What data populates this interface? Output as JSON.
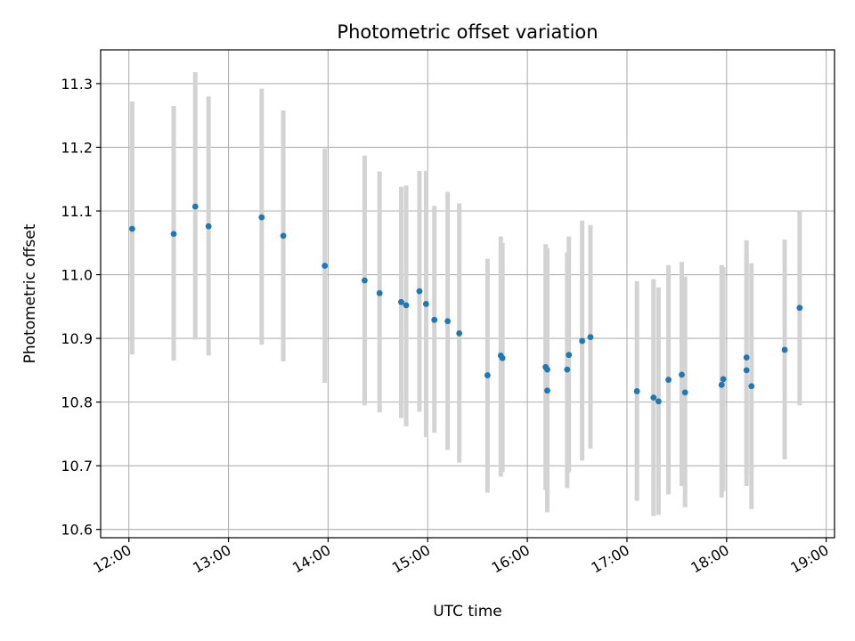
{
  "chart_data": {
    "type": "scatter",
    "title": "Photometric offset variation",
    "xlabel": "UTC time",
    "ylabel": "Photometric offset",
    "xlim": [
      "11:43",
      "19:05"
    ],
    "ylim": [
      10.587,
      11.353
    ],
    "x_ticks": [
      "12:00",
      "13:00",
      "14:00",
      "15:00",
      "16:00",
      "17:00",
      "18:00",
      "19:00"
    ],
    "y_ticks": [
      "10.6",
      "10.7",
      "10.8",
      "10.9",
      "11.0",
      "11.1",
      "11.2",
      "11.3"
    ],
    "grid": true,
    "marker_color": "#1f77b4",
    "errorbar_color": "#d3d3d3",
    "points": [
      {
        "t": "12:02",
        "y": 11.072,
        "ylo": 10.875,
        "yhi": 11.272
      },
      {
        "t": "12:27",
        "y": 11.064,
        "ylo": 10.865,
        "yhi": 11.265
      },
      {
        "t": "12:40",
        "y": 11.107,
        "ylo": 10.898,
        "yhi": 11.318
      },
      {
        "t": "12:48",
        "y": 11.076,
        "ylo": 10.873,
        "yhi": 11.28
      },
      {
        "t": "13:20",
        "y": 11.09,
        "ylo": 10.89,
        "yhi": 11.292
      },
      {
        "t": "13:33",
        "y": 11.061,
        "ylo": 10.864,
        "yhi": 11.258
      },
      {
        "t": "13:58",
        "y": 11.014,
        "ylo": 10.83,
        "yhi": 11.198
      },
      {
        "t": "14:22",
        "y": 10.991,
        "ylo": 10.795,
        "yhi": 11.187
      },
      {
        "t": "14:31",
        "y": 10.971,
        "ylo": 10.784,
        "yhi": 11.162
      },
      {
        "t": "14:44",
        "y": 10.957,
        "ylo": 10.775,
        "yhi": 11.138
      },
      {
        "t": "14:47",
        "y": 10.952,
        "ylo": 10.762,
        "yhi": 11.14
      },
      {
        "t": "14:55",
        "y": 10.974,
        "ylo": 10.785,
        "yhi": 11.163
      },
      {
        "t": "14:59",
        "y": 10.954,
        "ylo": 10.745,
        "yhi": 11.163
      },
      {
        "t": "15:04",
        "y": 10.929,
        "ylo": 10.752,
        "yhi": 11.108
      },
      {
        "t": "15:12",
        "y": 10.927,
        "ylo": 10.725,
        "yhi": 11.13
      },
      {
        "t": "15:19",
        "y": 10.908,
        "ylo": 10.705,
        "yhi": 11.112
      },
      {
        "t": "15:36",
        "y": 10.842,
        "ylo": 10.658,
        "yhi": 11.025
      },
      {
        "t": "15:44",
        "y": 10.873,
        "ylo": 10.683,
        "yhi": 11.06
      },
      {
        "t": "15:45",
        "y": 10.869,
        "ylo": 10.69,
        "yhi": 11.05
      },
      {
        "t": "16:11",
        "y": 10.855,
        "ylo": 10.662,
        "yhi": 11.048
      },
      {
        "t": "16:12",
        "y": 10.851,
        "ylo": 10.655,
        "yhi": 11.042
      },
      {
        "t": "16:12",
        "y": 10.818,
        "ylo": 10.627,
        "yhi": 11.01
      },
      {
        "t": "16:24",
        "y": 10.851,
        "ylo": 10.665,
        "yhi": 11.035
      },
      {
        "t": "16:25",
        "y": 10.874,
        "ylo": 10.69,
        "yhi": 11.06
      },
      {
        "t": "16:33",
        "y": 10.896,
        "ylo": 10.708,
        "yhi": 11.085
      },
      {
        "t": "16:38",
        "y": 10.902,
        "ylo": 10.727,
        "yhi": 11.078
      },
      {
        "t": "17:06",
        "y": 10.817,
        "ylo": 10.645,
        "yhi": 10.99
      },
      {
        "t": "17:16",
        "y": 10.807,
        "ylo": 10.621,
        "yhi": 10.993
      },
      {
        "t": "17:19",
        "y": 10.801,
        "ylo": 10.623,
        "yhi": 10.98
      },
      {
        "t": "17:25",
        "y": 10.835,
        "ylo": 10.655,
        "yhi": 11.015
      },
      {
        "t": "17:33",
        "y": 10.843,
        "ylo": 10.668,
        "yhi": 11.02
      },
      {
        "t": "17:35",
        "y": 10.815,
        "ylo": 10.635,
        "yhi": 10.997
      },
      {
        "t": "17:57",
        "y": 10.827,
        "ylo": 10.65,
        "yhi": 11.015
      },
      {
        "t": "17:58",
        "y": 10.836,
        "ylo": 10.66,
        "yhi": 11.012
      },
      {
        "t": "18:12",
        "y": 10.87,
        "ylo": 10.685,
        "yhi": 11.054
      },
      {
        "t": "18:12",
        "y": 10.85,
        "ylo": 10.668,
        "yhi": 11.033
      },
      {
        "t": "18:15",
        "y": 10.825,
        "ylo": 10.632,
        "yhi": 11.018
      },
      {
        "t": "18:35",
        "y": 10.882,
        "ylo": 10.71,
        "yhi": 11.055
      },
      {
        "t": "18:44",
        "y": 10.948,
        "ylo": 10.795,
        "yhi": 11.101
      }
    ]
  }
}
